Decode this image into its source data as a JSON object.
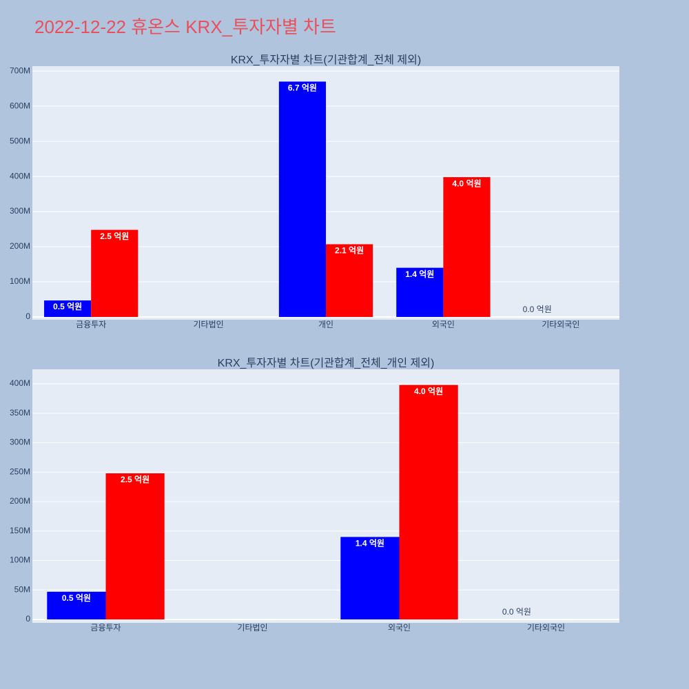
{
  "title": "2022-12-22 휴온스 KRX_투자자별 차트",
  "chart_data": [
    {
      "type": "bar",
      "title": "KRX_투자자별 차트(기관합계_전체 제외)",
      "categories": [
        "금융투자",
        "기타법인",
        "개인",
        "외국인",
        "기타외국인"
      ],
      "series": [
        {
          "color": "#0000ff",
          "values": [
            47000000,
            null,
            670000000,
            140000000,
            0
          ],
          "value_labels": [
            "0.5 억원",
            null,
            "6.7 억원",
            "1.4 억원",
            "0.0 억원"
          ]
        },
        {
          "color": "#ff0000",
          "values": [
            248000000,
            null,
            207000000,
            398000000,
            null
          ],
          "value_labels": [
            "2.5 억원",
            null,
            "2.1 억원",
            "4.0 억원",
            null
          ]
        }
      ],
      "ylim": [
        -7800000,
        714000000
      ],
      "yticks": [
        0,
        {
          "value": 100000000,
          "label": "100M"
        },
        {
          "value": 200000000,
          "label": "200M"
        },
        {
          "value": 300000000,
          "label": "300M"
        },
        {
          "value": 400000000,
          "label": "400M"
        },
        {
          "value": 500000000,
          "label": "500M"
        },
        {
          "value": 600000000,
          "label": "600M"
        },
        {
          "value": 700000000,
          "label": "700M"
        }
      ],
      "grid": true
    },
    {
      "type": "bar",
      "title": "KRX_투자자별 차트(기관합계_전체_개인 제외)",
      "categories": [
        "금융투자",
        "기타법인",
        "외국인",
        "기타외국인"
      ],
      "series": [
        {
          "color": "#0000ff",
          "values": [
            47000000,
            null,
            140000000,
            0
          ],
          "value_labels": [
            "0.5 억원",
            null,
            "1.4 억원",
            "0.0 억원"
          ]
        },
        {
          "color": "#ff0000",
          "values": [
            248000000,
            null,
            398000000,
            null
          ],
          "value_labels": [
            "2.5 억원",
            null,
            "4.0 억원",
            null
          ]
        }
      ],
      "ylim": [
        -5800000,
        424600000
      ],
      "yticks": [
        0,
        {
          "value": 50000000,
          "label": "50M"
        },
        {
          "value": 100000000,
          "label": "100M"
        },
        {
          "value": 150000000,
          "label": "150M"
        },
        {
          "value": 200000000,
          "label": "200M"
        },
        {
          "value": 250000000,
          "label": "250M"
        },
        {
          "value": 300000000,
          "label": "300M"
        },
        {
          "value": 350000000,
          "label": "350M"
        },
        {
          "value": 400000000,
          "label": "400M"
        }
      ],
      "grid": true
    }
  ]
}
